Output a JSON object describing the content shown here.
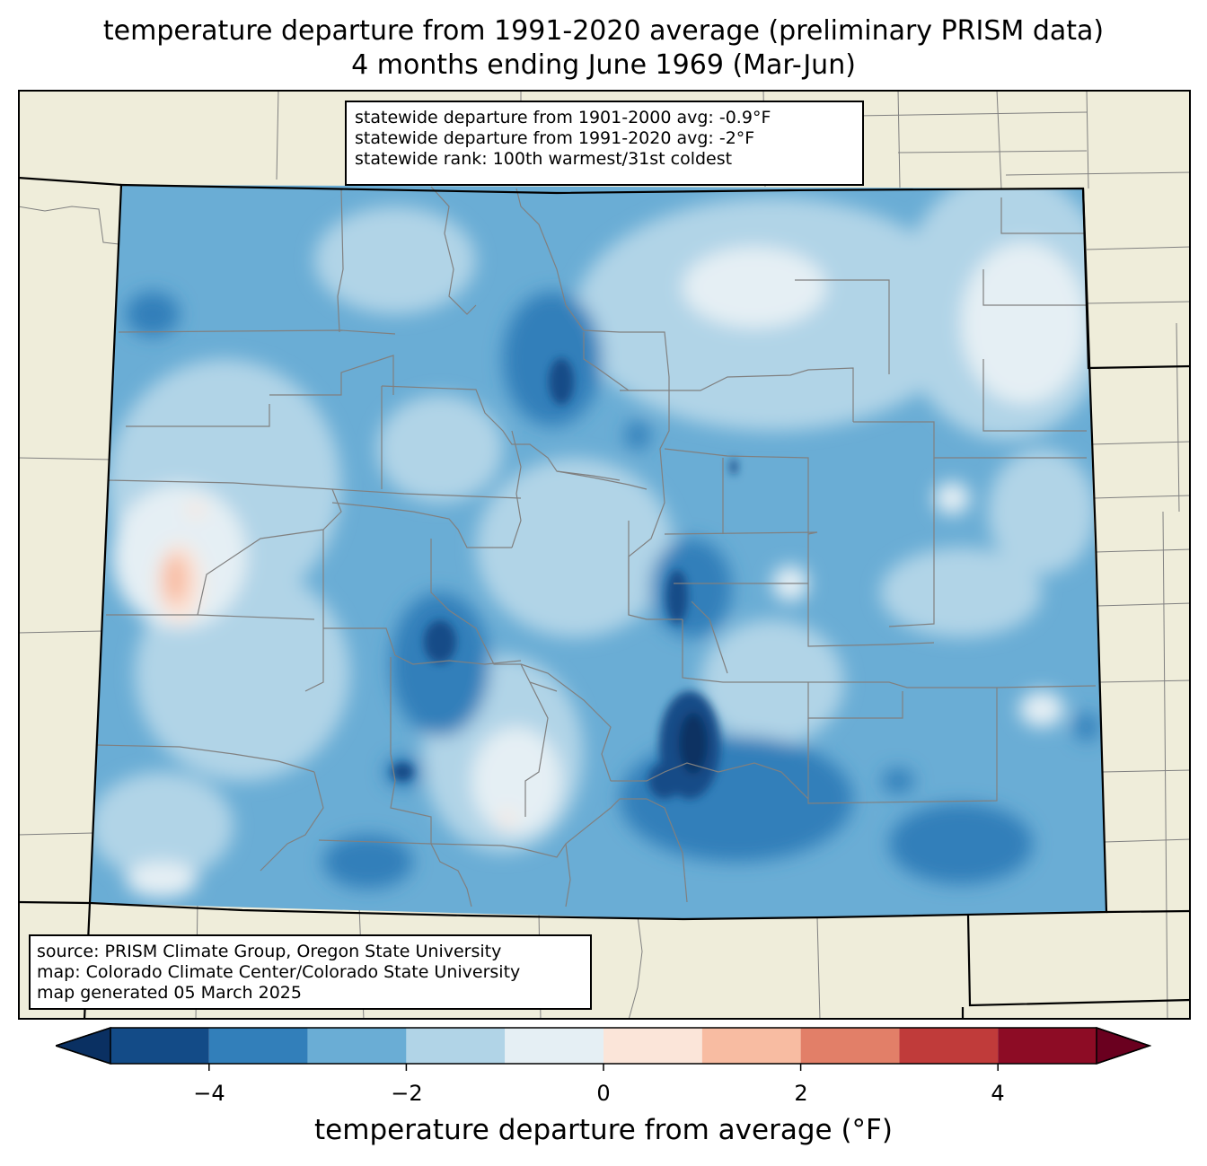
{
  "title": {
    "line1": "temperature departure from 1991-2020 average (preliminary PRISM data)",
    "line2": "4 months ending June 1969 (Mar-Jun)"
  },
  "stats": {
    "line1": "statewide departure from 1901-2000 avg: -0.9°F",
    "line2": "statewide departure from 1991-2020 avg: -2°F",
    "line3": "statewide rank: 100th warmest/31st coldest"
  },
  "source": {
    "line1": "source: PRISM Climate Group, Oregon State University",
    "line2": "map: Colorado Climate Center/Colorado State University",
    "line3": "map generated 05 March 2025"
  },
  "colorbar": {
    "label": "temperature departure from average (°F)",
    "ticks": [
      "−4",
      "−2",
      "0",
      "2",
      "4"
    ],
    "bins": [
      -5,
      -4,
      -3,
      -2,
      -1,
      0,
      1,
      2,
      3,
      4,
      5
    ],
    "colors": [
      "#134b87",
      "#327fba",
      "#6aadd5",
      "#b1d4e7",
      "#e5eff4",
      "#fbe5d9",
      "#f8bca2",
      "#e27f68",
      "#c03b3a",
      "#8d0c25"
    ],
    "extend_low_color": "#0a3062",
    "extend_high_color": "#6a001f"
  },
  "map_colors": {
    "background": "#efedda",
    "state_border": "#000000",
    "county_border": "#808080"
  }
}
